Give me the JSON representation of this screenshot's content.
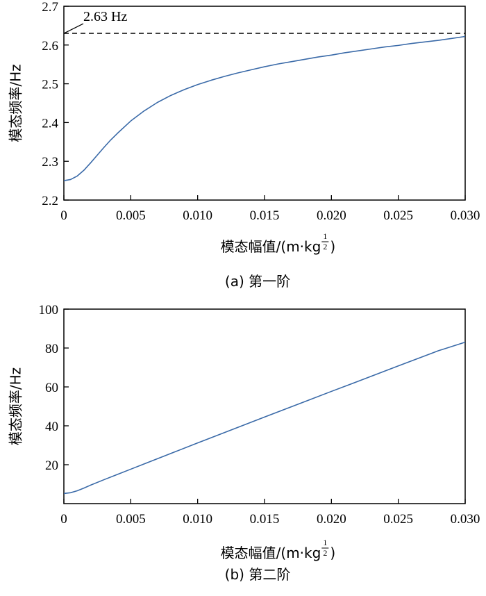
{
  "chart_data": [
    {
      "type": "line",
      "ylabel": "模态频率/Hz",
      "xlabel": "模态幅值/(m·kg",
      "xlabel_exp_num": "1",
      "xlabel_exp_den": "2",
      "xlabel_close": ")",
      "caption": "(a) 第一阶",
      "xlim": [
        0,
        0.03
      ],
      "ylim": [
        2.2,
        2.7
      ],
      "xticks": [
        0,
        0.005,
        0.01,
        0.015,
        0.02,
        0.025,
        0.03
      ],
      "xtick_labels": [
        "0",
        "0.005",
        "0.010",
        "0.015",
        "0.020",
        "0.025",
        "0.030"
      ],
      "yticks": [
        2.2,
        2.3,
        2.4,
        2.5,
        2.6,
        2.7
      ],
      "ytick_labels": [
        "2.2",
        "2.3",
        "2.4",
        "2.5",
        "2.6",
        "2.7"
      ],
      "reference_line": {
        "y": 2.63,
        "label": "2.63 Hz",
        "style": "dashed"
      },
      "series": [
        {
          "color": "#3a6aa8",
          "x": [
            0,
            0.0005,
            0.001,
            0.0015,
            0.002,
            0.0025,
            0.003,
            0.0035,
            0.004,
            0.005,
            0.006,
            0.007,
            0.008,
            0.009,
            0.01,
            0.011,
            0.012,
            0.013,
            0.014,
            0.015,
            0.016,
            0.017,
            0.018,
            0.019,
            0.02,
            0.021,
            0.022,
            0.023,
            0.024,
            0.025,
            0.026,
            0.027,
            0.028,
            0.029,
            0.03
          ],
          "y": [
            2.25,
            2.253,
            2.262,
            2.277,
            2.296,
            2.316,
            2.336,
            2.355,
            2.372,
            2.404,
            2.43,
            2.452,
            2.47,
            2.485,
            2.498,
            2.509,
            2.519,
            2.528,
            2.536,
            2.544,
            2.551,
            2.557,
            2.563,
            2.569,
            2.574,
            2.58,
            2.585,
            2.59,
            2.595,
            2.599,
            2.604,
            2.608,
            2.612,
            2.617,
            2.622
          ]
        }
      ]
    },
    {
      "type": "line",
      "ylabel": "模态频率/Hz",
      "xlabel": "模态幅值/(m·kg",
      "xlabel_exp_num": "1",
      "xlabel_exp_den": "2",
      "xlabel_close": ")",
      "caption": "(b) 第二阶",
      "xlim": [
        0,
        0.03
      ],
      "ylim": [
        0,
        100
      ],
      "xticks": [
        0,
        0.005,
        0.01,
        0.015,
        0.02,
        0.025,
        0.03
      ],
      "xtick_labels": [
        "0",
        "0.005",
        "0.010",
        "0.015",
        "0.020",
        "0.025",
        "0.030"
      ],
      "yticks": [
        20,
        40,
        60,
        80,
        100
      ],
      "ytick_labels": [
        "20",
        "40",
        "60",
        "80",
        "100"
      ],
      "series": [
        {
          "color": "#3a6aa8",
          "x": [
            0,
            0.0005,
            0.001,
            0.0015,
            0.002,
            0.003,
            0.004,
            0.005,
            0.006,
            0.008,
            0.01,
            0.012,
            0.015,
            0.018,
            0.02,
            0.022,
            0.025,
            0.028,
            0.03
          ],
          "y": [
            5.2,
            5.6,
            6.6,
            8.0,
            9.5,
            12.3,
            15.0,
            17.7,
            20.4,
            25.8,
            31.2,
            36.5,
            44.5,
            52.4,
            57.7,
            62.9,
            70.8,
            78.6,
            83.0
          ]
        }
      ]
    }
  ]
}
